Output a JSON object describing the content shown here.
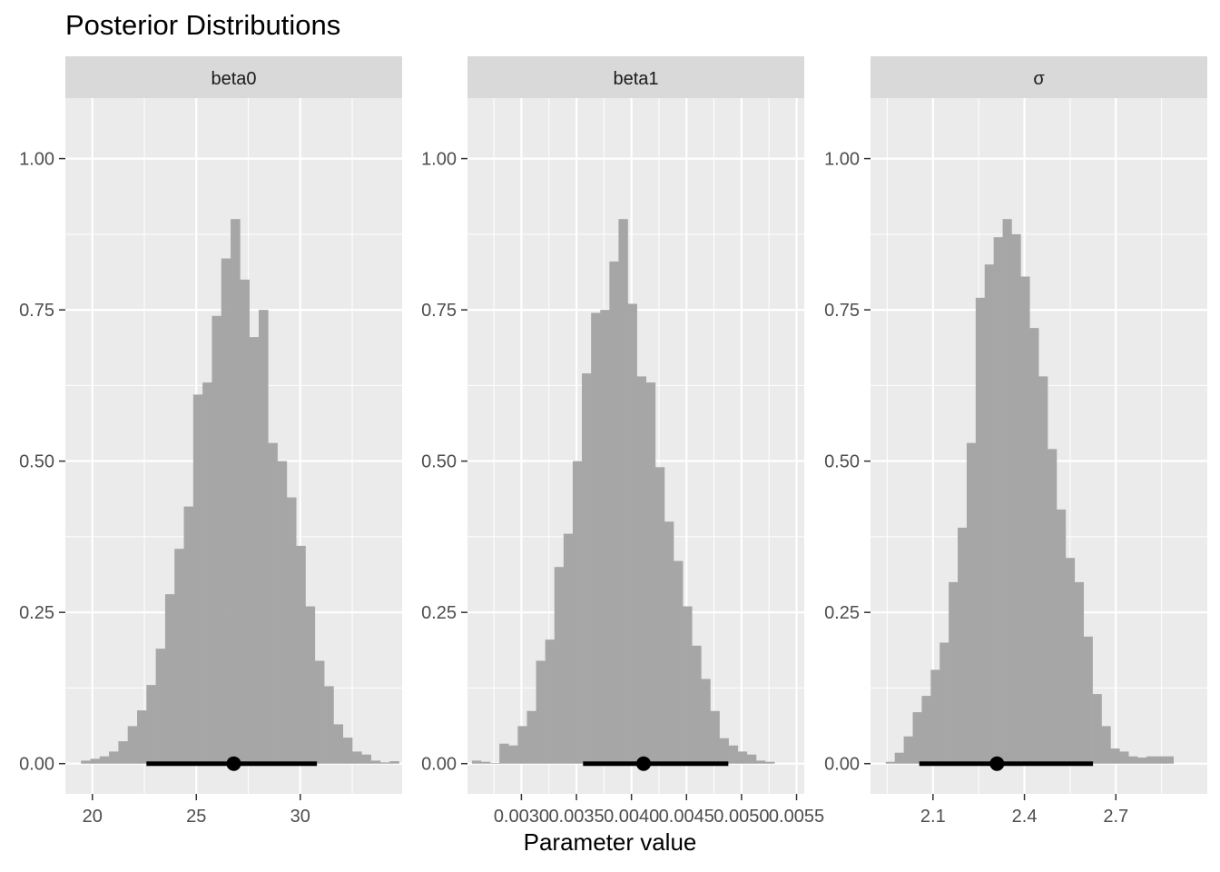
{
  "chart_data": {
    "type": "bar",
    "title": "Posterior Distributions",
    "xlabel": "Parameter value",
    "ylabel": "",
    "colors": {
      "panel_bg": "#EBEBEB",
      "strip_bg": "#D9D9D9",
      "bars": "#A6A6A6",
      "interval": "#000000",
      "grid": "#FFFFFF"
    },
    "ylim": [
      -0.05,
      1.1
    ],
    "yticks": [
      0.0,
      0.25,
      0.5,
      0.75,
      1.0
    ],
    "ytick_labels": [
      "0.00",
      "0.25",
      "0.50",
      "0.75",
      "1.00"
    ],
    "panels": [
      {
        "name": "beta0",
        "xlim": [
          18.7,
          34.9
        ],
        "xticks": [
          20,
          25,
          30
        ],
        "xtick_labels": [
          "20",
          "25",
          "30"
        ],
        "bin_start": 19.45,
        "bin_width": 0.45,
        "values": [
          0.005,
          0.008,
          0.012,
          0.02,
          0.037,
          0.062,
          0.088,
          0.13,
          0.19,
          0.28,
          0.355,
          0.425,
          0.61,
          0.63,
          0.74,
          0.835,
          0.9,
          0.8,
          0.705,
          0.75,
          0.53,
          0.5,
          0.44,
          0.36,
          0.26,
          0.17,
          0.128,
          0.065,
          0.043,
          0.02,
          0.015,
          0.005,
          0.002,
          0.004
        ],
        "interval": {
          "low": 22.6,
          "high": 30.8,
          "point": 26.8
        }
      },
      {
        "name": "beta1",
        "xlim": [
          0.00251,
          0.00557
        ],
        "xticks": [
          0.003,
          0.0035,
          0.004,
          0.0045,
          0.005,
          0.0055
        ],
        "xtick_labels": [
          "0.0030",
          "0.0035",
          "0.0040",
          "0.0045",
          "0.0050",
          "0.0055"
        ],
        "bin_start": 0.00255,
        "bin_width": 8.33e-05,
        "values": [
          0.005,
          0.003,
          0.001,
          0.033,
          0.03,
          0.062,
          0.087,
          0.17,
          0.205,
          0.325,
          0.38,
          0.5,
          0.645,
          0.745,
          0.75,
          0.83,
          0.9,
          0.76,
          0.64,
          0.63,
          0.49,
          0.4,
          0.335,
          0.26,
          0.195,
          0.14,
          0.087,
          0.042,
          0.03,
          0.02,
          0.015,
          0.005,
          0.003
        ],
        "interval": {
          "low": 0.00356,
          "high": 0.00488,
          "point": 0.00411
        }
      },
      {
        "name": "σ",
        "xlim": [
          1.895,
          3.0
        ],
        "xticks": [
          2.1,
          2.4,
          2.7
        ],
        "xtick_labels": [
          "2.1",
          "2.4",
          "2.7"
        ],
        "bin_start": 1.945,
        "bin_width": 0.0295,
        "values": [
          0.003,
          0.018,
          0.045,
          0.085,
          0.112,
          0.155,
          0.2,
          0.3,
          0.39,
          0.53,
          0.77,
          0.825,
          0.87,
          0.9,
          0.875,
          0.805,
          0.72,
          0.64,
          0.52,
          0.42,
          0.34,
          0.3,
          0.21,
          0.115,
          0.062,
          0.025,
          0.02,
          0.012,
          0.01,
          0.012,
          0.012,
          0.012
        ],
        "interval": {
          "low": 2.055,
          "high": 2.625,
          "point": 2.31
        }
      }
    ]
  }
}
